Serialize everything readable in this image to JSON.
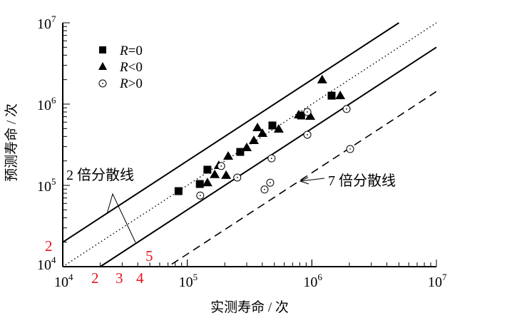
{
  "chart_data": {
    "type": "scatter",
    "xlabel": "实测寿命 / 次",
    "ylabel": "预测寿命 / 次",
    "xscale": "log",
    "yscale": "log",
    "xlim": [
      10000,
      10000000
    ],
    "ylim": [
      10000,
      10000000
    ],
    "x_ticks": [
      {
        "base": "10",
        "exp": "4",
        "value": 10000
      },
      {
        "base": "10",
        "exp": "5",
        "value": 100000
      },
      {
        "base": "10",
        "exp": "6",
        "value": 1000000
      },
      {
        "base": "10",
        "exp": "7",
        "value": 10000000
      }
    ],
    "y_ticks": [
      {
        "base": "10",
        "exp": "4",
        "value": 10000
      },
      {
        "base": "10",
        "exp": "5",
        "value": 100000
      },
      {
        "base": "10",
        "exp": "6",
        "value": 1000000
      },
      {
        "base": "10",
        "exp": "7",
        "value": 10000000
      }
    ],
    "grid": false,
    "legend_position": "top-left",
    "series": [
      {
        "name": "R=0",
        "legend_prefix": "R",
        "legend_suffix": "=0",
        "marker": "square",
        "color": "#000000",
        "points": [
          [
            85000,
            85000
          ],
          [
            126000,
            104000
          ],
          [
            145000,
            156000
          ],
          [
            266000,
            258000
          ],
          [
            482000,
            546000
          ],
          [
            820000,
            724000
          ],
          [
            1440000,
            1270000
          ]
        ]
      },
      {
        "name": "R<0",
        "legend_prefix": "R",
        "legend_suffix": "<0",
        "marker": "triangle",
        "color": "#000000",
        "points": [
          [
            145000,
            108000
          ],
          [
            166000,
            136000
          ],
          [
            205000,
            133000
          ],
          [
            179000,
            176000
          ],
          [
            213000,
            229000
          ],
          [
            300000,
            292000
          ],
          [
            342000,
            357000
          ],
          [
            401000,
            437000
          ],
          [
            366000,
            514000
          ],
          [
            542000,
            493000
          ],
          [
            785000,
            738000
          ],
          [
            970000,
            710000
          ],
          [
            1210000,
            1990000
          ],
          [
            1690000,
            1270000
          ]
        ]
      },
      {
        "name": "R>0",
        "legend_prefix": "R",
        "legend_suffix": ">0",
        "marker": "open-circle-dot",
        "color": "#000000",
        "points": [
          [
            127000,
            75000
          ],
          [
            187000,
            173000
          ],
          [
            252000,
            125000
          ],
          [
            475000,
            215000
          ],
          [
            417000,
            89000
          ],
          [
            463000,
            108000
          ],
          [
            920000,
            420000
          ],
          [
            920000,
            800000
          ],
          [
            1900000,
            870000
          ],
          [
            2030000,
            280000
          ]
        ]
      }
    ],
    "reference_lines": [
      {
        "kind": "upper-2x",
        "factor": 2,
        "style": "solid"
      },
      {
        "kind": "equal",
        "factor": 1,
        "style": "dotted"
      },
      {
        "kind": "lower-2x",
        "factor": 0.5,
        "style": "solid"
      },
      {
        "kind": "lower-7x",
        "factor": 0.142857,
        "style": "dashed"
      }
    ],
    "annotations": {
      "band_2x": "2 倍分散线",
      "band_7x": "7 倍分散线"
    },
    "red_marks": {
      "y_axis": "2",
      "x_axis": [
        "2",
        "3",
        "4"
      ],
      "inside": "5"
    },
    "accent_color": "#e8141e"
  }
}
